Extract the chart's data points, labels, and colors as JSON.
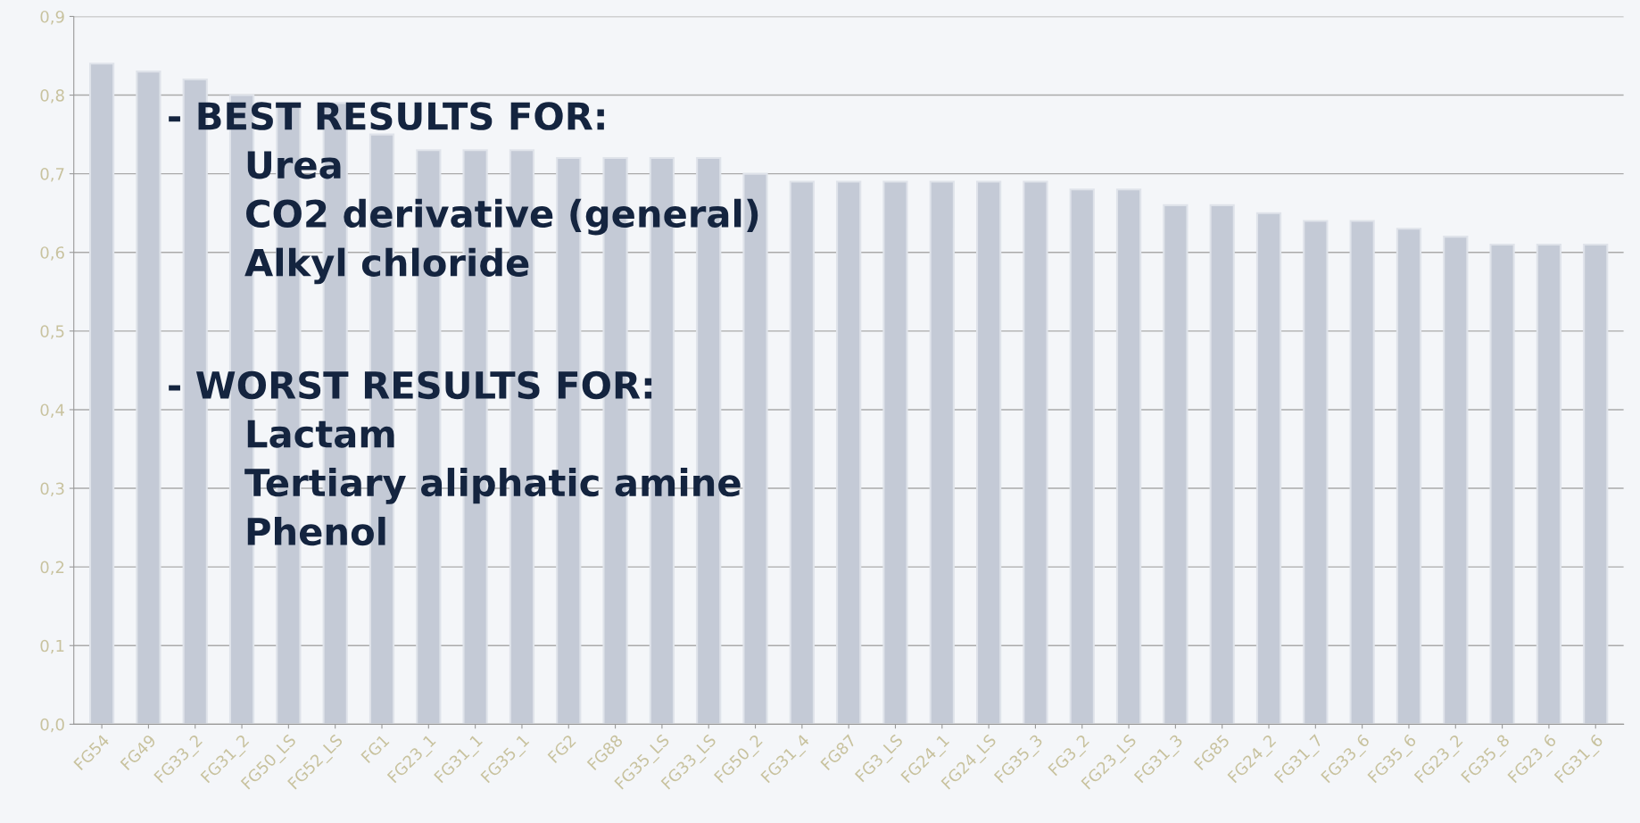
{
  "chart_data": {
    "type": "bar",
    "categories": [
      "FG54",
      "FG49",
      "FG33_2",
      "FG31_2",
      "FG50_LS",
      "FG52_LS",
      "FG1",
      "FG23_1",
      "FG31_1",
      "FG35_1",
      "FG2",
      "FG88",
      "FG35_LS",
      "FG33_LS",
      "FG50_2",
      "FG31_4",
      "FG87",
      "FG3_LS",
      "FG24_1",
      "FG24_LS",
      "FG35_3",
      "FG3_2",
      "FG23_LS",
      "FG31_3",
      "FG85",
      "FG24_2",
      "FG31_7",
      "FG33_6",
      "FG35_6",
      "FG23_2",
      "FG35_8",
      "FG23_6",
      "FG31_6"
    ],
    "values": [
      0.84,
      0.83,
      0.82,
      0.8,
      0.79,
      0.79,
      0.75,
      0.73,
      0.73,
      0.73,
      0.72,
      0.72,
      0.72,
      0.72,
      0.7,
      0.69,
      0.69,
      0.69,
      0.69,
      0.69,
      0.69,
      0.68,
      0.68,
      0.66,
      0.66,
      0.65,
      0.64,
      0.64,
      0.63,
      0.62,
      0.61,
      0.61,
      0.61
    ],
    "color": "#c4cad6",
    "ylim": [
      0,
      0.9
    ],
    "yticks": [
      {
        "value": 0,
        "label": "0,0"
      },
      {
        "value": 0.1,
        "label": "0,1"
      },
      {
        "value": 0.2,
        "label": "0,2"
      },
      {
        "value": 0.3,
        "label": "0,3"
      },
      {
        "value": 0.4,
        "label": "0,4"
      },
      {
        "value": 0.5,
        "label": "0,5"
      },
      {
        "value": 0.6,
        "label": "0,6"
      },
      {
        "value": 0.7,
        "label": "0,7"
      },
      {
        "value": 0.8,
        "label": "0,8"
      },
      {
        "value": 0.9,
        "label": "0,9"
      }
    ],
    "grid": "y",
    "annotations": [
      "- BEST RESULTS FOR:\n      Urea\n      CO2 derivative (general)\n      Alkyl chloride",
      "- WORST RESULTS FOR:\n      Lactam\n      Tertiary aliphatic amine\n      Phenol"
    ]
  }
}
